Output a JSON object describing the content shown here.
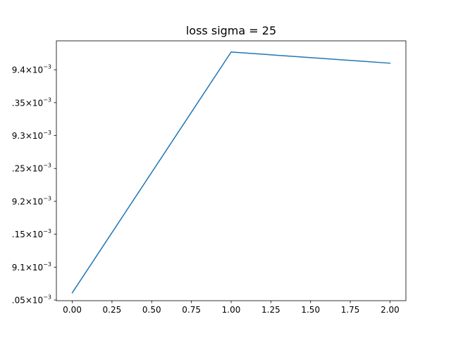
{
  "chart_data": {
    "type": "line",
    "title": "loss sigma = 25",
    "xlabel": "",
    "ylabel": "",
    "grid": false,
    "x": [
      0,
      1,
      2
    ],
    "series": [
      {
        "values": [
          0.009061,
          0.009427,
          0.00941
        ],
        "color": "#1f77b4"
      }
    ],
    "xlim": [
      -0.1,
      2.1
    ],
    "ylim": [
      0.009049,
      0.009444
    ],
    "x_ticks": [
      {
        "value": 0.0,
        "label": "0.00"
      },
      {
        "value": 0.25,
        "label": "0.25"
      },
      {
        "value": 0.5,
        "label": "0.50"
      },
      {
        "value": 0.75,
        "label": "0.75"
      },
      {
        "value": 1.0,
        "label": "1.00"
      },
      {
        "value": 1.25,
        "label": "1.25"
      },
      {
        "value": 1.5,
        "label": "1.50"
      },
      {
        "value": 1.75,
        "label": "1.75"
      },
      {
        "value": 2.0,
        "label": "2.00"
      }
    ],
    "y_ticks": [
      {
        "value": 0.00905,
        "mantissa": ".05",
        "times": "×10",
        "exp": "−3"
      },
      {
        "value": 0.0091,
        "mantissa": "9.1",
        "times": "×10",
        "exp": "−3"
      },
      {
        "value": 0.00915,
        "mantissa": ".15",
        "times": "×10",
        "exp": "−3"
      },
      {
        "value": 0.0092,
        "mantissa": "9.2",
        "times": "×10",
        "exp": "−3"
      },
      {
        "value": 0.00925,
        "mantissa": ".25",
        "times": "×10",
        "exp": "−3"
      },
      {
        "value": 0.0093,
        "mantissa": "9.3",
        "times": "×10",
        "exp": "−3"
      },
      {
        "value": 0.00935,
        "mantissa": ".35",
        "times": "×10",
        "exp": "−3"
      },
      {
        "value": 0.0094,
        "mantissa": "9.4",
        "times": "×10",
        "exp": "−3"
      }
    ]
  }
}
